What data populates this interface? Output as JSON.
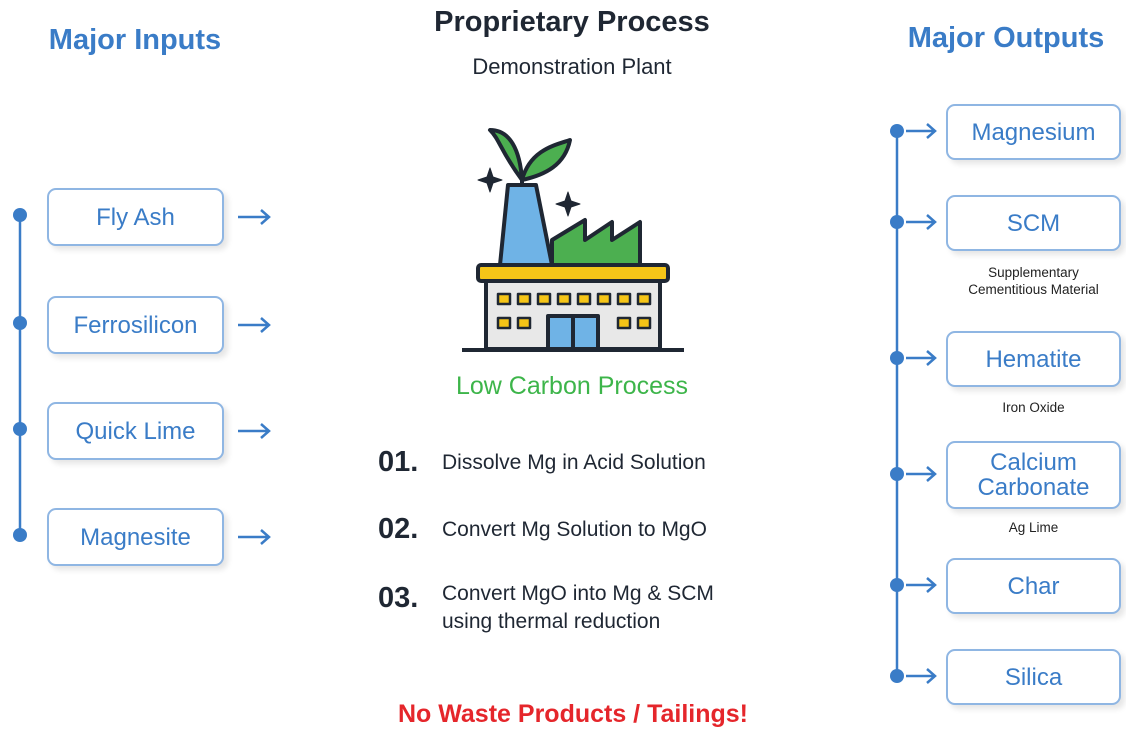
{
  "inputs": {
    "title": "Major Inputs",
    "items": [
      "Fly Ash",
      "Ferrosilicon",
      "Quick Lime",
      "Magnesite"
    ]
  },
  "process": {
    "title": "Proprietary Process",
    "subtitle": "Demonstration Plant",
    "tagline": "Low Carbon Process",
    "steps": [
      {
        "number": "01.",
        "lines": [
          "Dissolve Mg in Acid Solution"
        ]
      },
      {
        "number": "02.",
        "lines": [
          "Convert Mg Solution to MgO"
        ]
      },
      {
        "number": "03.",
        "lines": [
          "Convert MgO into Mg & SCM",
          "using thermal reduction"
        ]
      }
    ],
    "footer": "No Waste Products / Tailings!"
  },
  "outputs": {
    "title": "Major Outputs",
    "items": [
      {
        "lines": [
          "Magnesium"
        ]
      },
      {
        "lines": [
          "SCM"
        ],
        "note": [
          "Supplementary",
          "Cementitious Material"
        ]
      },
      {
        "lines": [
          "Hematite"
        ],
        "note": [
          "Iron Oxide"
        ]
      },
      {
        "lines": [
          "Calcium",
          "Carbonate"
        ],
        "note": [
          "Ag Lime"
        ]
      },
      {
        "lines": [
          "Char"
        ]
      },
      {
        "lines": [
          "Silica"
        ]
      }
    ]
  }
}
